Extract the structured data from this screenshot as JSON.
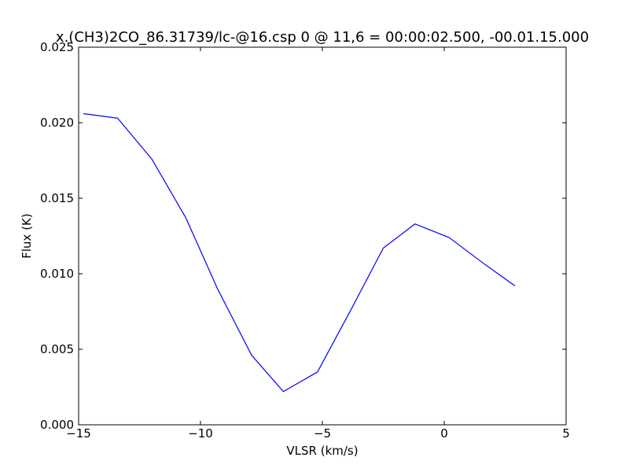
{
  "chart_data": {
    "type": "line",
    "title": "x.(CH3)2CO_86.31739/lc-@16.csp 0 @ 11,6 = 00:00:02.500, -00.01.15.000",
    "xlabel": "VLSR (km/s)",
    "ylabel": "Flux (K)",
    "xlim": [
      -15,
      5
    ],
    "ylim": [
      0,
      0.025
    ],
    "x_ticks": [
      -15,
      -10,
      -5,
      0,
      5
    ],
    "x_tick_labels": [
      "−15",
      "−10",
      "−5",
      "0",
      "5"
    ],
    "y_ticks": [
      0,
      0.005,
      0.01,
      0.015,
      0.02,
      0.025
    ],
    "y_tick_labels": [
      "0.000",
      "0.005",
      "0.010",
      "0.015",
      "0.020",
      "0.025"
    ],
    "grid": false,
    "series": [
      {
        "color": "#0000ff",
        "x": [
          -14.8,
          -13.4,
          -12.0,
          -10.6,
          -9.3,
          -7.9,
          -6.6,
          -5.2,
          -3.8,
          -2.5,
          -1.2,
          0.2,
          1.6,
          2.9
        ],
        "y": [
          0.0206,
          0.0203,
          0.0176,
          0.0137,
          0.009,
          0.0046,
          0.0022,
          0.0035,
          0.0077,
          0.0117,
          0.0133,
          0.0124,
          0.0107,
          0.0092
        ]
      }
    ]
  }
}
